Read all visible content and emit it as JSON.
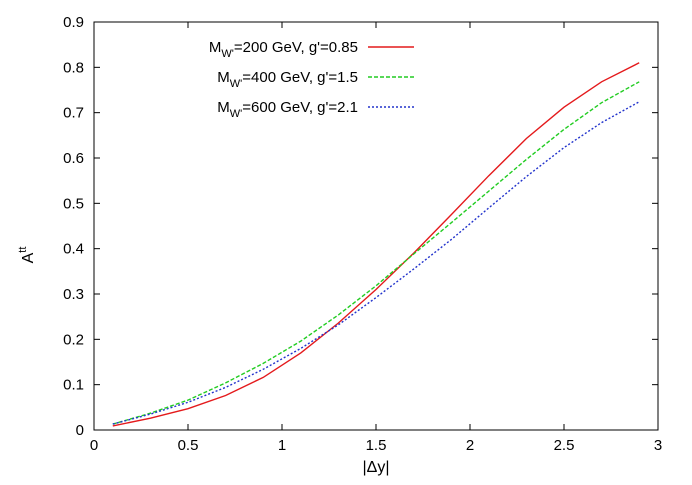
{
  "chart_data": {
    "type": "line",
    "title": "",
    "xlabel": "|Δy|",
    "ylabel": "A",
    "ylabel_superscript": "tt",
    "xlim": [
      0,
      3
    ],
    "ylim": [
      0,
      0.9
    ],
    "xticks": [
      {
        "value": 0,
        "label": "0"
      },
      {
        "value": 0.5,
        "label": "0.5"
      },
      {
        "value": 1,
        "label": "1"
      },
      {
        "value": 1.5,
        "label": "1.5"
      },
      {
        "value": 2,
        "label": "2"
      },
      {
        "value": 2.5,
        "label": "2.5"
      },
      {
        "value": 3,
        "label": "3"
      }
    ],
    "yticks": [
      {
        "value": 0,
        "label": "0"
      },
      {
        "value": 0.1,
        "label": "0.1"
      },
      {
        "value": 0.2,
        "label": "0.2"
      },
      {
        "value": 0.3,
        "label": "0.3"
      },
      {
        "value": 0.4,
        "label": "0.4"
      },
      {
        "value": 0.5,
        "label": "0.5"
      },
      {
        "value": 0.6,
        "label": "0.6"
      },
      {
        "value": 0.7,
        "label": "0.7"
      },
      {
        "value": 0.8,
        "label": "0.8"
      },
      {
        "value": 0.9,
        "label": "0.9"
      }
    ],
    "grid": false,
    "legend_position": "top-left",
    "x": [
      0.1,
      0.3,
      0.5,
      0.7,
      0.9,
      1.1,
      1.3,
      1.5,
      1.7,
      1.9,
      2.1,
      2.3,
      2.5,
      2.7,
      2.9
    ],
    "series": [
      {
        "name": "M_W'=200 GeV, g'=0.85",
        "legend_prefix": "M",
        "legend_subscript": "W'",
        "legend_suffix": "=200 GeV, g'=0.85",
        "color": "#e41a1c",
        "dash": "solid",
        "values": [
          0.009,
          0.026,
          0.047,
          0.076,
          0.116,
          0.17,
          0.236,
          0.31,
          0.39,
          0.475,
          0.561,
          0.643,
          0.712,
          0.768,
          0.81
        ]
      },
      {
        "name": "M_W'=400 GeV, g'=1.5",
        "legend_prefix": "M",
        "legend_subscript": "W'",
        "legend_suffix": "=400 GeV, g'=1.5",
        "color": "#22cc22",
        "dash": "dashed",
        "values": [
          0.013,
          0.037,
          0.066,
          0.104,
          0.147,
          0.196,
          0.254,
          0.318,
          0.388,
          0.457,
          0.527,
          0.597,
          0.663,
          0.722,
          0.768
        ]
      },
      {
        "name": "M_W'=600 GeV, g'=2.1",
        "legend_prefix": "M",
        "legend_subscript": "W'",
        "legend_suffix": "=600 GeV, g'=2.1",
        "color": "#2233cc",
        "dash": "dotted",
        "values": [
          0.013,
          0.035,
          0.061,
          0.094,
          0.134,
          0.18,
          0.232,
          0.292,
          0.355,
          0.42,
          0.49,
          0.559,
          0.623,
          0.678,
          0.724
        ]
      }
    ]
  }
}
